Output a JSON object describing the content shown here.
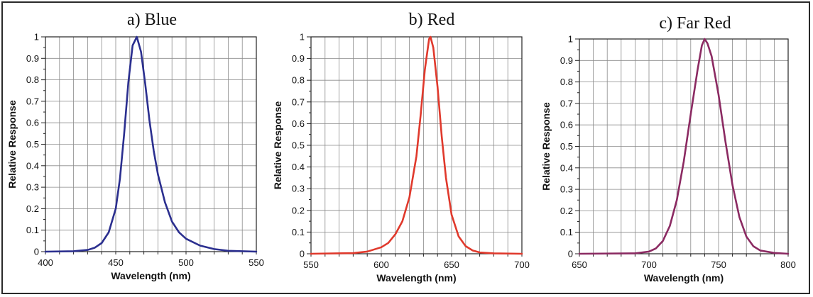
{
  "chart_data": [
    {
      "type": "line",
      "title": "a) Blue",
      "xlabel": "Wavelength (nm)",
      "ylabel": "Relative Response",
      "xlim": [
        400,
        550
      ],
      "ylim": [
        0,
        1
      ],
      "xticks": [
        400,
        450,
        500,
        550
      ],
      "yticks": [
        0,
        0.1,
        0.2,
        0.3,
        0.4,
        0.5,
        0.6,
        0.7,
        0.8,
        0.9,
        1
      ],
      "ytick_labels": [
        "0",
        "0.1",
        "0.2",
        "0.3",
        "0.4",
        "0.5",
        "0.6",
        "0.7",
        "0.8",
        "0.9",
        "1"
      ],
      "grid": true,
      "color": "#2b2f8f",
      "series": [
        {
          "x": [
            400,
            420,
            430,
            435,
            440,
            445,
            450,
            453,
            456,
            459,
            462,
            465,
            468,
            471,
            474,
            477,
            480,
            485,
            490,
            495,
            500,
            510,
            520,
            530,
            550
          ],
          "y": [
            0.0,
            0.002,
            0.008,
            0.018,
            0.04,
            0.09,
            0.2,
            0.34,
            0.55,
            0.79,
            0.96,
            1.0,
            0.93,
            0.78,
            0.61,
            0.47,
            0.36,
            0.23,
            0.14,
            0.09,
            0.06,
            0.028,
            0.012,
            0.004,
            0.0
          ]
        }
      ]
    },
    {
      "type": "line",
      "title": "b) Red",
      "xlabel": "Wavelength (nm)",
      "ylabel": "Relative Response",
      "xlim": [
        550,
        700
      ],
      "ylim": [
        0,
        1
      ],
      "xticks": [
        550,
        600,
        650,
        700
      ],
      "yticks": [
        0,
        0.1,
        0.2,
        0.3,
        0.4,
        0.5,
        0.6,
        0.7,
        0.8,
        0.9,
        1
      ],
      "ytick_labels": [
        "0",
        "0.1",
        "0.2",
        "0.3",
        "0.4",
        "0.5",
        "0.6",
        "0.7",
        "0.8",
        "0.9",
        "1"
      ],
      "grid": true,
      "color": "#e0392c",
      "series": [
        {
          "x": [
            550,
            580,
            590,
            600,
            605,
            610,
            615,
            620,
            625,
            628,
            631,
            634,
            635,
            637,
            640,
            643,
            646,
            650,
            655,
            660,
            665,
            670,
            680,
            700
          ],
          "y": [
            0.0,
            0.003,
            0.01,
            0.03,
            0.05,
            0.09,
            0.15,
            0.26,
            0.45,
            0.64,
            0.85,
            0.99,
            1.0,
            0.95,
            0.77,
            0.54,
            0.35,
            0.18,
            0.08,
            0.035,
            0.015,
            0.006,
            0.002,
            0.0
          ]
        }
      ]
    },
    {
      "type": "line",
      "title": "c) Far Red",
      "xlabel": "Wavelength (nm)",
      "ylabel": "Relative Response",
      "xlim": [
        650,
        800
      ],
      "ylim": [
        0,
        1
      ],
      "xticks": [
        650,
        700,
        750,
        800
      ],
      "yticks": [
        0,
        0.1,
        0.2,
        0.3,
        0.4,
        0.5,
        0.6,
        0.7,
        0.8,
        0.9,
        1
      ],
      "ytick_labels": [
        "0",
        "0.1",
        "0.2",
        "0.3",
        "0.4",
        "0.5",
        "0.6",
        "0.7",
        "0.8",
        "0.9",
        "1"
      ],
      "grid": true,
      "color": "#8b2a62",
      "series": [
        {
          "x": [
            650,
            690,
            700,
            705,
            710,
            715,
            720,
            725,
            730,
            735,
            738,
            740,
            742,
            745,
            750,
            755,
            760,
            765,
            770,
            775,
            780,
            790,
            800
          ],
          "y": [
            0.0,
            0.002,
            0.01,
            0.025,
            0.06,
            0.13,
            0.25,
            0.43,
            0.65,
            0.86,
            0.97,
            1.0,
            0.98,
            0.92,
            0.74,
            0.52,
            0.32,
            0.17,
            0.08,
            0.035,
            0.015,
            0.004,
            0.0
          ]
        }
      ]
    }
  ]
}
